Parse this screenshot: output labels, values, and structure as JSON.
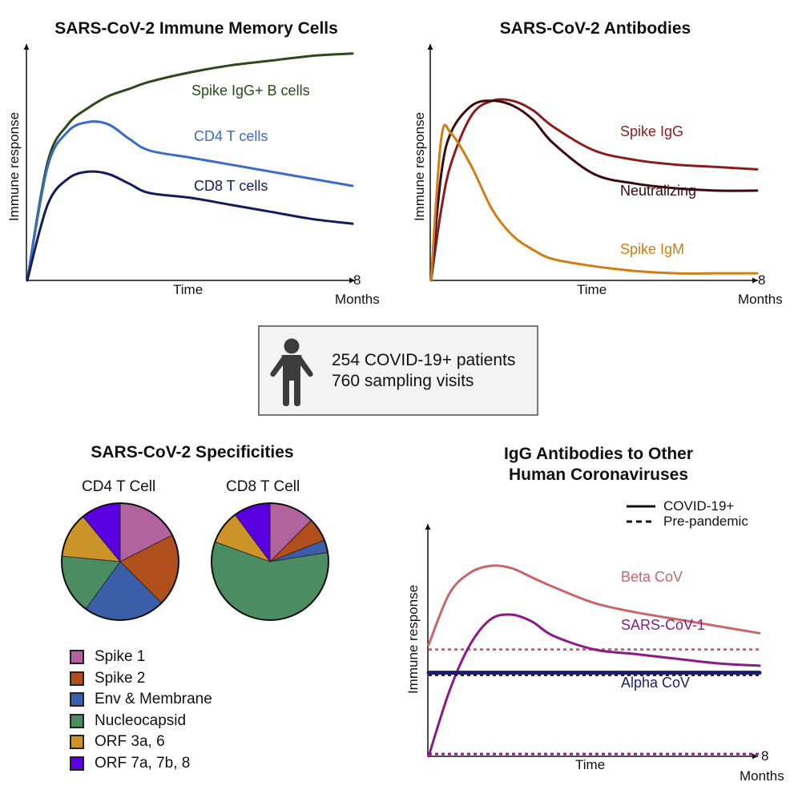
{
  "panels": {
    "memory_cells": {
      "title": "SARS-CoV-2 Immune Memory Cells",
      "ylabel": "Immune response",
      "xlabel": "Time",
      "x_end_tick": "8",
      "x_end_unit": "Months",
      "series": [
        {
          "name": "Spike IgG+ B cells",
          "color": "#2a4a1a"
        },
        {
          "name": "CD4 T cells",
          "color": "#3a6bc7"
        },
        {
          "name": "CD8 T cells",
          "color": "#141b5c"
        }
      ]
    },
    "antibodies": {
      "title": "SARS-CoV-2 Antibodies",
      "ylabel": "Immune response",
      "xlabel": "Time",
      "x_end_tick": "8",
      "x_end_unit": "Months",
      "series": [
        {
          "name": "Spike IgG",
          "color": "#8c1c1c"
        },
        {
          "name": "Neutralizing",
          "color": "#3a0a10"
        },
        {
          "name": "Spike IgM",
          "color": "#d07d12"
        }
      ]
    },
    "cohort": {
      "icon": "person-icon",
      "line1": "254 COVID-19+ patients",
      "line2": "760 sampling visits"
    },
    "specificities": {
      "title": "SARS-CoV-2 Specificities",
      "pies": [
        {
          "label": "CD4 T Cell"
        },
        {
          "label": "CD8 T Cell"
        }
      ],
      "legend": [
        {
          "label": "Spike 1",
          "color": "#b0639c"
        },
        {
          "label": "Spike 2",
          "color": "#b04e1c"
        },
        {
          "label": "Env & Membrane",
          "color": "#3b5ea8"
        },
        {
          "label": "Nucleocapsid",
          "color": "#4b8c63"
        },
        {
          "label": "ORF 3a, 6",
          "color": "#cc9428"
        },
        {
          "label": "ORF 7a, 7b, 8",
          "color": "#5a00e0"
        }
      ]
    },
    "other_cov": {
      "title_line1": "IgG Antibodies to Other",
      "title_line2": "Human Coronaviruses",
      "ylabel": "Immune response",
      "xlabel": "Time",
      "x_end_tick": "8",
      "x_end_unit": "Months",
      "legend": [
        {
          "label": "COVID-19+",
          "style": "solid"
        },
        {
          "label": "Pre-pandemic",
          "style": "dashed"
        }
      ],
      "series": [
        {
          "name": "Beta CoV",
          "color": "#c8666a"
        },
        {
          "name": "SARS-CoV-1",
          "color": "#8a1a86"
        },
        {
          "name": "Alpha CoV",
          "color": "#1c1b6e"
        }
      ]
    }
  },
  "chart_data": [
    {
      "type": "line",
      "title": "SARS-CoV-2 Immune Memory Cells",
      "xlabel": "Time",
      "ylabel": "Immune response",
      "xlim": [
        0,
        8
      ],
      "x_unit": "Months",
      "x": [
        0,
        0.5,
        1,
        1.5,
        2,
        2.5,
        3,
        4,
        5,
        6,
        7,
        8
      ],
      "series": [
        {
          "name": "Spike IgG+ B cells",
          "values": [
            0,
            50,
            66,
            73,
            78,
            81,
            84,
            88,
            91,
            93,
            95,
            96
          ]
        },
        {
          "name": "CD4 T cells",
          "values": [
            0,
            48,
            63,
            67,
            66,
            60,
            55,
            52,
            49,
            46,
            43,
            40
          ]
        },
        {
          "name": "CD8 T cells",
          "values": [
            0,
            32,
            43,
            46,
            45,
            41,
            37,
            35,
            32,
            29,
            26,
            24
          ]
        }
      ]
    },
    {
      "type": "line",
      "title": "SARS-CoV-2 Antibodies",
      "xlabel": "Time",
      "ylabel": "Immune response",
      "xlim": [
        0,
        8
      ],
      "x_unit": "Months",
      "x": [
        0,
        0.25,
        0.5,
        1,
        1.5,
        2,
        2.5,
        3,
        4,
        5,
        6,
        7,
        8
      ],
      "series": [
        {
          "name": "Spike IgG",
          "values": [
            0,
            30,
            50,
            70,
            76,
            76,
            72,
            65,
            55,
            51,
            49,
            48,
            47
          ]
        },
        {
          "name": "Neutralizing",
          "values": [
            0,
            45,
            63,
            74,
            76,
            74,
            68,
            58,
            45,
            41,
            39,
            38,
            38
          ]
        },
        {
          "name": "Spike IgM",
          "values": [
            0,
            60,
            62,
            48,
            30,
            19,
            13,
            9,
            6,
            4,
            3,
            3,
            3
          ]
        }
      ]
    },
    {
      "type": "pie",
      "title": "CD4 T Cell",
      "categories": [
        "Spike 1",
        "Spike 2",
        "Env & Membrane",
        "Nucleocapsid",
        "ORF 3a, 6",
        "ORF 7a, 7b, 8"
      ],
      "values": [
        17.5,
        20,
        22.5,
        16.5,
        12.5,
        11
      ]
    },
    {
      "type": "pie",
      "title": "CD8 T Cell",
      "categories": [
        "Spike 1",
        "Spike 2",
        "Env & Membrane",
        "Nucleocapsid",
        "ORF 3a, 6",
        "ORF 7a, 7b, 8"
      ],
      "values": [
        12.5,
        6.5,
        3.5,
        58,
        9.3,
        10.2
      ]
    },
    {
      "type": "line",
      "title": "IgG Antibodies to Other Human Coronaviruses",
      "xlabel": "Time",
      "ylabel": "Immune response",
      "xlim": [
        0,
        8
      ],
      "x_unit": "Months",
      "x": [
        0,
        0.5,
        1,
        1.5,
        2,
        2.5,
        3,
        4,
        5,
        6,
        7,
        8
      ],
      "series": [
        {
          "name": "Beta CoV (COVID-19+)",
          "style": "solid",
          "values": [
            48,
            70,
            79,
            82,
            81,
            77,
            73,
            66,
            62,
            59,
            56,
            53
          ]
        },
        {
          "name": "Beta CoV (Pre-pandemic)",
          "style": "dashed",
          "values": [
            46,
            46,
            46,
            46,
            46,
            46,
            46,
            46,
            46,
            46,
            46,
            46
          ]
        },
        {
          "name": "SARS-CoV-1 (COVID-19+)",
          "style": "solid",
          "values": [
            0,
            28,
            48,
            59,
            61,
            58,
            52,
            46,
            44,
            42,
            40,
            39
          ]
        },
        {
          "name": "SARS-CoV-1 (Pre-pandemic)",
          "style": "dashed",
          "values": [
            1,
            1,
            1,
            1,
            1,
            1,
            1,
            1,
            1,
            1,
            1,
            1
          ]
        },
        {
          "name": "Alpha CoV (COVID-19+)",
          "style": "solid",
          "values": [
            36,
            36,
            36,
            36,
            36,
            36,
            36,
            36,
            36,
            36,
            36,
            36
          ]
        },
        {
          "name": "Alpha CoV (Pre-pandemic)",
          "style": "dashed",
          "values": [
            35,
            35,
            35,
            35,
            35,
            35,
            35,
            35,
            35,
            35,
            35,
            35
          ]
        }
      ]
    }
  ]
}
